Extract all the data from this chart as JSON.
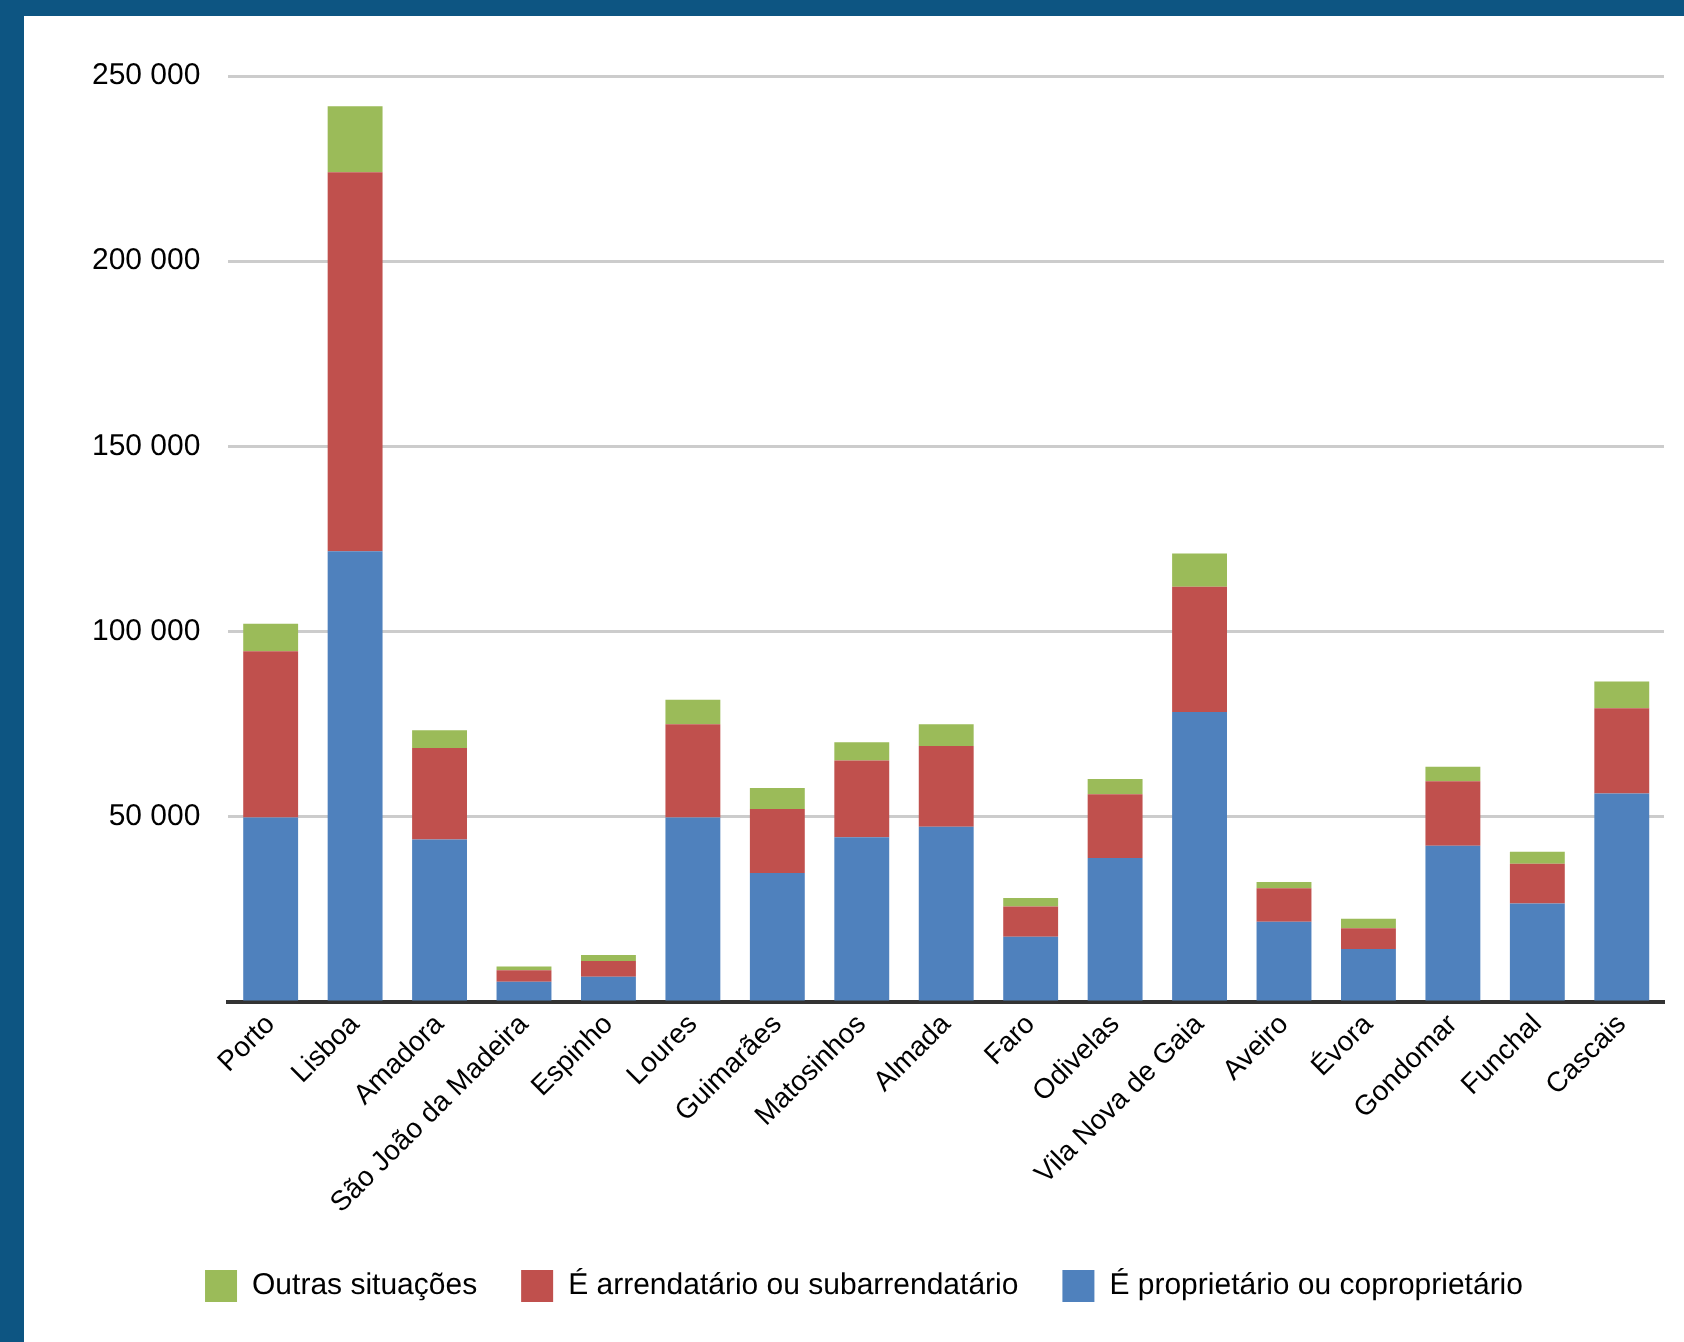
{
  "chart_data": {
    "type": "bar",
    "stacked": true,
    "categories": [
      "Porto",
      "Lisboa",
      "Amadora",
      "São João da Madeira",
      "Espinho",
      "Loures",
      "Guimarães",
      "Matosinhos",
      "Almada",
      "Faro",
      "Odivelas",
      "Vila Nova de Gaia",
      "Aveiro",
      "Évora",
      "Gondomar",
      "Funchal",
      "Cascais"
    ],
    "series": [
      {
        "name": "É proprietário ou coproprietário",
        "color": "#4f81bd",
        "values": [
          49800,
          121700,
          43900,
          5500,
          6800,
          49800,
          34800,
          44500,
          47300,
          17600,
          38900,
          78300,
          21700,
          14300,
          42200,
          26600,
          56300
        ]
      },
      {
        "name": "É arrendatário ou subarrendatário",
        "color": "#c0504d",
        "values": [
          44900,
          102300,
          24700,
          3100,
          4300,
          25200,
          17300,
          20700,
          21800,
          8200,
          17200,
          33800,
          9000,
          5600,
          17400,
          10700,
          23000
        ]
      },
      {
        "name": "Outras situações",
        "color": "#9bbb59",
        "values": [
          7400,
          17800,
          4800,
          1000,
          1600,
          6600,
          5700,
          4900,
          5900,
          2300,
          4100,
          9000,
          1700,
          2600,
          3900,
          3300,
          7200
        ]
      }
    ],
    "ylim": [
      0,
      250000
    ],
    "yticks": [
      {
        "value": 0,
        "label": null
      },
      {
        "value": 50000,
        "label": "50 000"
      },
      {
        "value": 100000,
        "label": "100 000"
      },
      {
        "value": 150000,
        "label": "150 000"
      },
      {
        "value": 200000,
        "label": "200 000"
      },
      {
        "value": 250000,
        "label": "250 000"
      }
    ],
    "grid": "y",
    "legend": "bottom"
  }
}
